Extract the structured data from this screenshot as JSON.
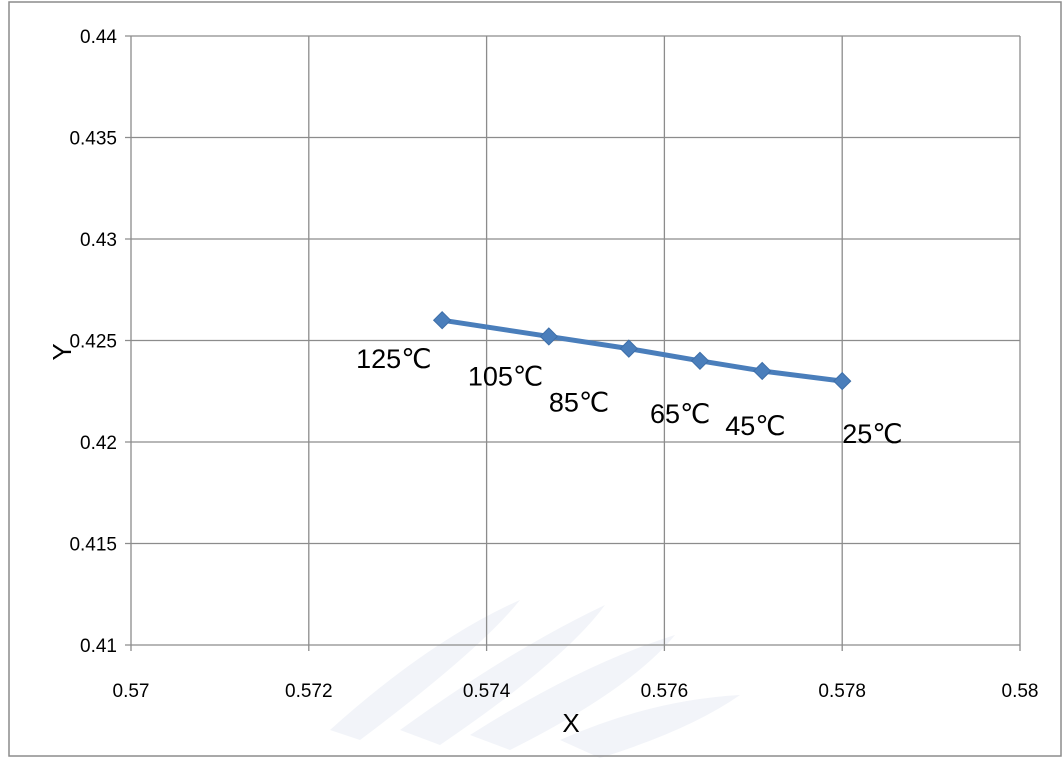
{
  "chart_data": {
    "type": "line",
    "title": "",
    "xlabel": "X",
    "ylabel": "Y",
    "xlim": [
      0.57,
      0.58
    ],
    "ylim": [
      0.41,
      0.44
    ],
    "x_ticks": [
      "0.57",
      "0.572",
      "0.574",
      "0.576",
      "0.578",
      "0.58"
    ],
    "y_ticks": [
      "0.41",
      "0.415",
      "0.42",
      "0.425",
      "0.43",
      "0.435",
      "0.44"
    ],
    "grid": true,
    "legend": "none",
    "series": [
      {
        "color": "#4a7ebb",
        "marker": "diamond",
        "points": [
          {
            "x": 0.5735,
            "y": 0.426,
            "label": "125℃"
          },
          {
            "x": 0.5747,
            "y": 0.4252,
            "label": "105℃"
          },
          {
            "x": 0.5756,
            "y": 0.4246,
            "label": "85℃"
          },
          {
            "x": 0.5764,
            "y": 0.424,
            "label": "65℃"
          },
          {
            "x": 0.5771,
            "y": 0.4235,
            "label": "45℃"
          },
          {
            "x": 0.578,
            "y": 0.423,
            "label": "25℃"
          }
        ]
      }
    ]
  }
}
